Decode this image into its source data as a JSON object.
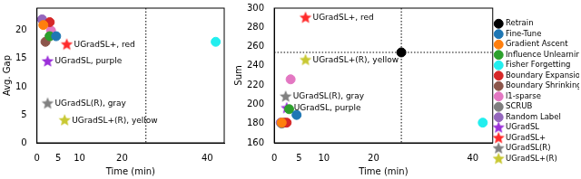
{
  "chart_data": [
    {
      "type": "scatter",
      "xlabel": "Time (min)",
      "ylabel": "Avg. Gap",
      "xlim": [
        0,
        44
      ],
      "xticks": [
        0,
        5,
        10,
        20,
        40
      ],
      "ylim": [
        0,
        24
      ],
      "yticks": [
        0,
        5,
        10,
        15,
        20
      ],
      "grid": false,
      "vlines": [
        25.6
      ],
      "series": [
        {
          "name": "Fine-Tune",
          "color": "#1f77b4",
          "marker": "circle",
          "x": [
            4.5
          ],
          "values": [
            19
          ]
        },
        {
          "name": "Gradient Ascent",
          "color": "#ff7f0e",
          "marker": "circle",
          "x": [
            1.5
          ],
          "values": [
            21
          ]
        },
        {
          "name": "Influence Unlearning",
          "color": "#2ca02c",
          "marker": "circle",
          "x": [
            3
          ],
          "values": [
            19
          ]
        },
        {
          "name": "Fisher Forgetting",
          "color": "#22eeee",
          "marker": "circle",
          "x": [
            42
          ],
          "values": [
            18
          ]
        },
        {
          "name": "Boundary Expansion",
          "color": "#d62728",
          "marker": "circle",
          "x": [
            3
          ],
          "values": [
            21.5
          ]
        },
        {
          "name": "Boundary Shrinking",
          "color": "#8c564b",
          "marker": "circle",
          "x": [
            2
          ],
          "values": [
            18
          ]
        },
        {
          "name": "l1-sparse",
          "color": "#e377c2",
          "marker": "circle",
          "x": [
            3.3
          ],
          "values": [
            20
          ]
        },
        {
          "name": "SCRUB",
          "color": "#7f7f7f",
          "marker": "circle",
          "x": [
            3
          ],
          "values": [
            19
          ]
        },
        {
          "name": "Random Label",
          "color": "#9467bd",
          "marker": "circle",
          "x": [
            1.2
          ],
          "values": [
            22
          ]
        },
        {
          "name": "UGradSL",
          "color": "#9b30d9",
          "marker": "star",
          "x": [
            2.5
          ],
          "values": [
            14.5
          ],
          "annotation": "UGradSL, purple"
        },
        {
          "name": "UGradSL+",
          "color": "#ff2a2a",
          "marker": "star",
          "x": [
            7
          ],
          "values": [
            17.5
          ],
          "annotation": "UGradSL+, red"
        },
        {
          "name": "UGradSL(R)",
          "color": "#808080",
          "marker": "star",
          "x": [
            2.5
          ],
          "values": [
            7
          ],
          "annotation": "UGradSL(R), gray"
        },
        {
          "name": "UGradSL+(R)",
          "color": "#c8c832",
          "marker": "star",
          "x": [
            6.5
          ],
          "values": [
            4
          ],
          "annotation": "UGradSL+(R), yellow"
        }
      ]
    },
    {
      "type": "scatter",
      "xlabel": "Time (min)",
      "ylabel": "Sum",
      "xlim": [
        0,
        44
      ],
      "xticks": [
        0,
        5,
        10,
        20,
        40
      ],
      "ylim": [
        160,
        300
      ],
      "yticks": [
        160,
        180,
        200,
        220,
        240,
        260,
        280,
        300
      ],
      "grid": false,
      "legend": "right",
      "vlines": [
        25.6
      ],
      "hlines": [
        254
      ],
      "series": [
        {
          "name": "Retrain",
          "color": "#000000",
          "marker": "circle",
          "x": [
            25.6
          ],
          "values": [
            254
          ]
        },
        {
          "name": "Fine-Tune",
          "color": "#1f77b4",
          "marker": "circle",
          "x": [
            4.5
          ],
          "values": [
            189
          ]
        },
        {
          "name": "Gradient Ascent",
          "color": "#ff7f0e",
          "marker": "circle",
          "x": [
            1.5
          ],
          "values": [
            181
          ]
        },
        {
          "name": "Influence Unlearning",
          "color": "#2ca02c",
          "marker": "circle",
          "x": [
            3
          ],
          "values": [
            195
          ]
        },
        {
          "name": "Fisher Forgetting",
          "color": "#22eeee",
          "marker": "circle",
          "x": [
            42
          ],
          "values": [
            181
          ]
        },
        {
          "name": "Boundary Expansion",
          "color": "#d62728",
          "marker": "circle",
          "x": [
            2.5
          ],
          "values": [
            181
          ]
        },
        {
          "name": "Boundary Shrinking",
          "color": "#8c564b",
          "marker": "circle",
          "x": [
            2
          ],
          "values": [
            181
          ]
        },
        {
          "name": "l1-sparse",
          "color": "#e377c2",
          "marker": "circle",
          "x": [
            3.3
          ],
          "values": [
            226
          ]
        },
        {
          "name": "SCRUB",
          "color": "#7f7f7f",
          "marker": "circle",
          "x": [
            1.5
          ],
          "values": [
            180
          ]
        },
        {
          "name": "Random Label",
          "color": "#9467bd",
          "marker": "circle",
          "x": [
            1.3
          ],
          "values": [
            181
          ]
        },
        {
          "name": "UGradSL",
          "color": "#9b30d9",
          "marker": "star",
          "x": [
            2.5
          ],
          "values": [
            196
          ],
          "annotation": "UGradSL, purple"
        },
        {
          "name": "UGradSL+",
          "color": "#ff2a2a",
          "marker": "star",
          "x": [
            6.3
          ],
          "values": [
            290
          ],
          "annotation": "UGradSL+, red"
        },
        {
          "name": "UGradSL(R)",
          "color": "#808080",
          "marker": "star",
          "x": [
            2.3
          ],
          "values": [
            208
          ],
          "annotation": "UGradSL(R), gray"
        },
        {
          "name": "UGradSL+(R)",
          "color": "#c8c832",
          "marker": "star",
          "x": [
            6.3
          ],
          "values": [
            246
          ],
          "annotation": "UGradSL+(R), yellow"
        }
      ]
    }
  ]
}
